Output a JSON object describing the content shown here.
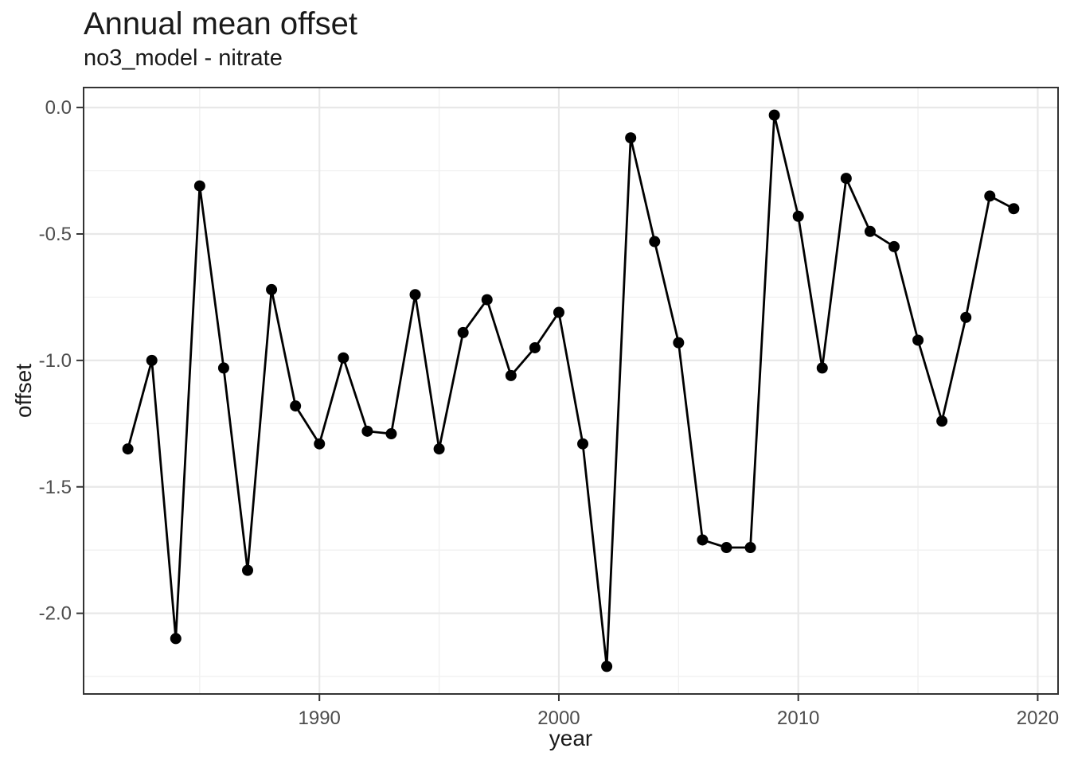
{
  "title": "Annual mean offset",
  "subtitle": "no3_model - nitrate",
  "chart_data": {
    "type": "line",
    "title": "Annual mean offset",
    "subtitle": "no3_model - nitrate",
    "xlabel": "year",
    "ylabel": "offset",
    "series": [
      {
        "name": "annual-mean-offset",
        "x": [
          1982,
          1983,
          1984,
          1985,
          1986,
          1987,
          1988,
          1989,
          1990,
          1991,
          1992,
          1993,
          1994,
          1995,
          1996,
          1997,
          1998,
          1999,
          2000,
          2001,
          2002,
          2003,
          2004,
          2005,
          2006,
          2007,
          2008,
          2009,
          2010,
          2011,
          2012,
          2013,
          2014,
          2015,
          2016,
          2017,
          2018,
          2019
        ],
        "y": [
          -1.35,
          -1.0,
          -2.1,
          -0.31,
          -1.03,
          -1.83,
          -0.72,
          -1.18,
          -1.33,
          -0.99,
          -1.28,
          -1.29,
          -0.74,
          -1.35,
          -0.89,
          -0.76,
          -1.06,
          -0.95,
          -0.81,
          -1.33,
          -2.21,
          -0.12,
          -0.53,
          -0.93,
          -1.71,
          -1.74,
          -1.74,
          -0.03,
          -0.43,
          -1.03,
          -0.28,
          -0.49,
          -0.55,
          -0.92,
          -1.24,
          -0.83,
          -0.35,
          -0.4
        ]
      }
    ],
    "x_axis": {
      "range": [
        1980.15,
        2020.85
      ],
      "major_ticks": [
        1990,
        2000,
        2010,
        2020
      ],
      "tick_labels": [
        "1990",
        "2000",
        "2010",
        "2020"
      ],
      "minor_ticks": [
        1985,
        1995,
        2005,
        2015
      ]
    },
    "y_axis": {
      "range": [
        -2.319,
        0.079
      ],
      "major_ticks": [
        0.0,
        -0.5,
        -1.0,
        -1.5,
        -2.0
      ],
      "tick_labels": [
        "0.0",
        "-0.5",
        "-1.0",
        "-1.5",
        "-2.0"
      ],
      "minor_ticks": [
        -0.25,
        -0.75,
        -1.25,
        -1.75,
        -2.25
      ]
    },
    "grid": "major+minor",
    "legend": "none",
    "style": {
      "line_color": "#000000",
      "point_color": "#000000",
      "background": "#ffffff",
      "panel_border": "#333333",
      "grid_major_color": "#e8e8e8",
      "grid_minor_color": "#f1f1f1",
      "tick_color": "#333333",
      "tick_label_color": "#4d4d4d",
      "text_color": "#1a1a1a"
    }
  }
}
